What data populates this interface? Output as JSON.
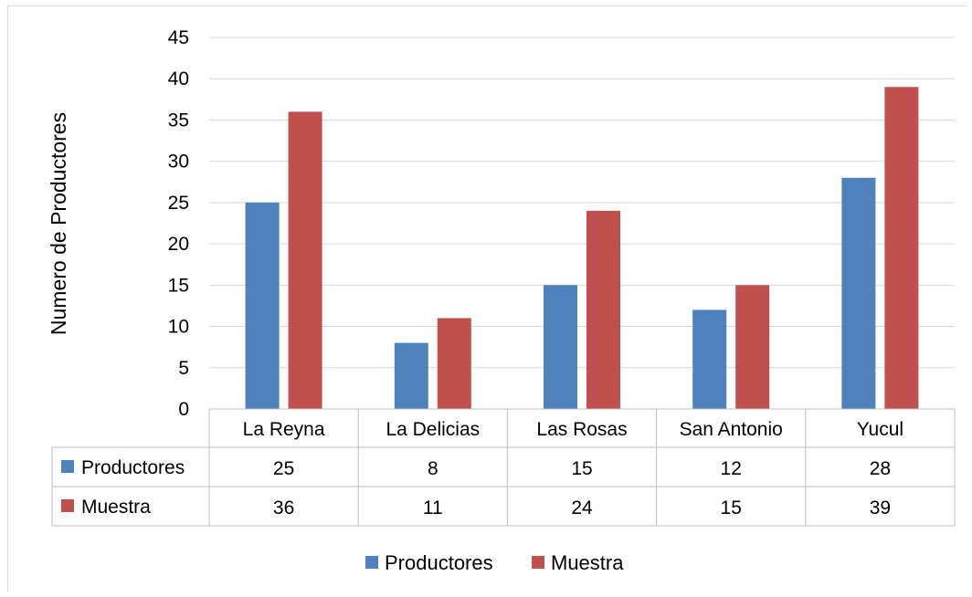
{
  "chart_data": {
    "type": "bar",
    "title": "",
    "xlabel": "",
    "ylabel": "Numero de Productores",
    "ylim": [
      0,
      45
    ],
    "yticks": [
      0,
      5,
      10,
      15,
      20,
      25,
      30,
      35,
      40,
      45
    ],
    "categories": [
      "La Reyna",
      "La Delicias",
      "Las Rosas",
      "San Antonio",
      "Yucul"
    ],
    "series": [
      {
        "name": "Productores",
        "values": [
          25,
          8,
          15,
          12,
          28
        ],
        "color": "#4f81bd"
      },
      {
        "name": "Muestra",
        "values": [
          36,
          11,
          24,
          15,
          39
        ],
        "color": "#c0504d"
      }
    ],
    "grid": true,
    "legend": "bottom",
    "data_table": true
  }
}
